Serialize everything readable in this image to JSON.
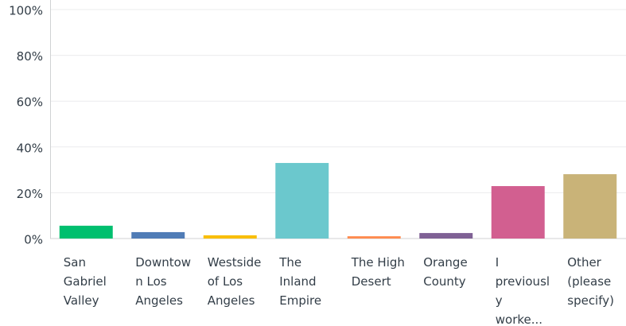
{
  "chart_data": {
    "type": "bar",
    "categories": [
      "San Gabriel Valley",
      "Downtown Los Angeles",
      "Westside of Los Angeles",
      "The Inland Empire",
      "The High Desert",
      "Orange County",
      "I previously worke...",
      "Other (please specify)"
    ],
    "values": [
      5.6,
      2.8,
      1.4,
      33,
      1,
      2.4,
      22.9,
      28.1
    ],
    "colors": [
      "#00bf6f",
      "#507cb6",
      "#f9be00",
      "#6bc8cd",
      "#ff8b4f",
      "#7f6195",
      "#d25f90",
      "#c9b378"
    ],
    "ylim": [
      0,
      100
    ],
    "yticks": [
      {
        "value": 0,
        "label": "0%"
      },
      {
        "value": 20,
        "label": "20%"
      },
      {
        "value": 40,
        "label": "40%"
      },
      {
        "value": 60,
        "label": "60%"
      },
      {
        "value": 80,
        "label": "80%"
      },
      {
        "value": 100,
        "label": "100%"
      }
    ],
    "grid": true
  }
}
